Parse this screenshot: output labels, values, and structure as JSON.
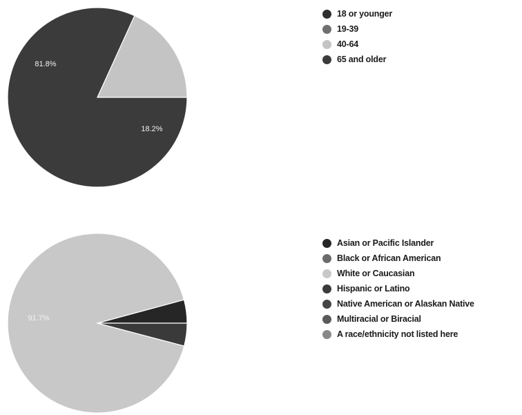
{
  "chart_data": [
    {
      "type": "pie",
      "categories": [
        "18 or younger",
        "19-39",
        "40-64",
        "65 and older"
      ],
      "values": [
        0,
        0,
        18.2,
        81.8
      ],
      "data_labels": [
        "",
        "",
        "18.2%",
        "81.8%"
      ],
      "colors": [
        "#2f2f2f",
        "#707070",
        "#c4c4c4",
        "#3b3b3b"
      ],
      "legend_position": "right"
    },
    {
      "type": "pie",
      "categories": [
        "Asian or Pacific Islander",
        "Black or African American",
        "White or Caucasian",
        "Hispanic or Latino",
        "Native American or Alaskan Native",
        "Multiracial or Biracial",
        "A race/ethnicity not listed here"
      ],
      "values": [
        4.2,
        0,
        91.7,
        4.1,
        0,
        0,
        0
      ],
      "data_labels": [
        "",
        "",
        "91.7%",
        "",
        "",
        "",
        ""
      ],
      "colors": [
        "#262626",
        "#6b6b6b",
        "#c8c8c8",
        "#3a3a3a",
        "#454545",
        "#5a5a5a",
        "#888888"
      ],
      "legend_position": "right"
    }
  ]
}
